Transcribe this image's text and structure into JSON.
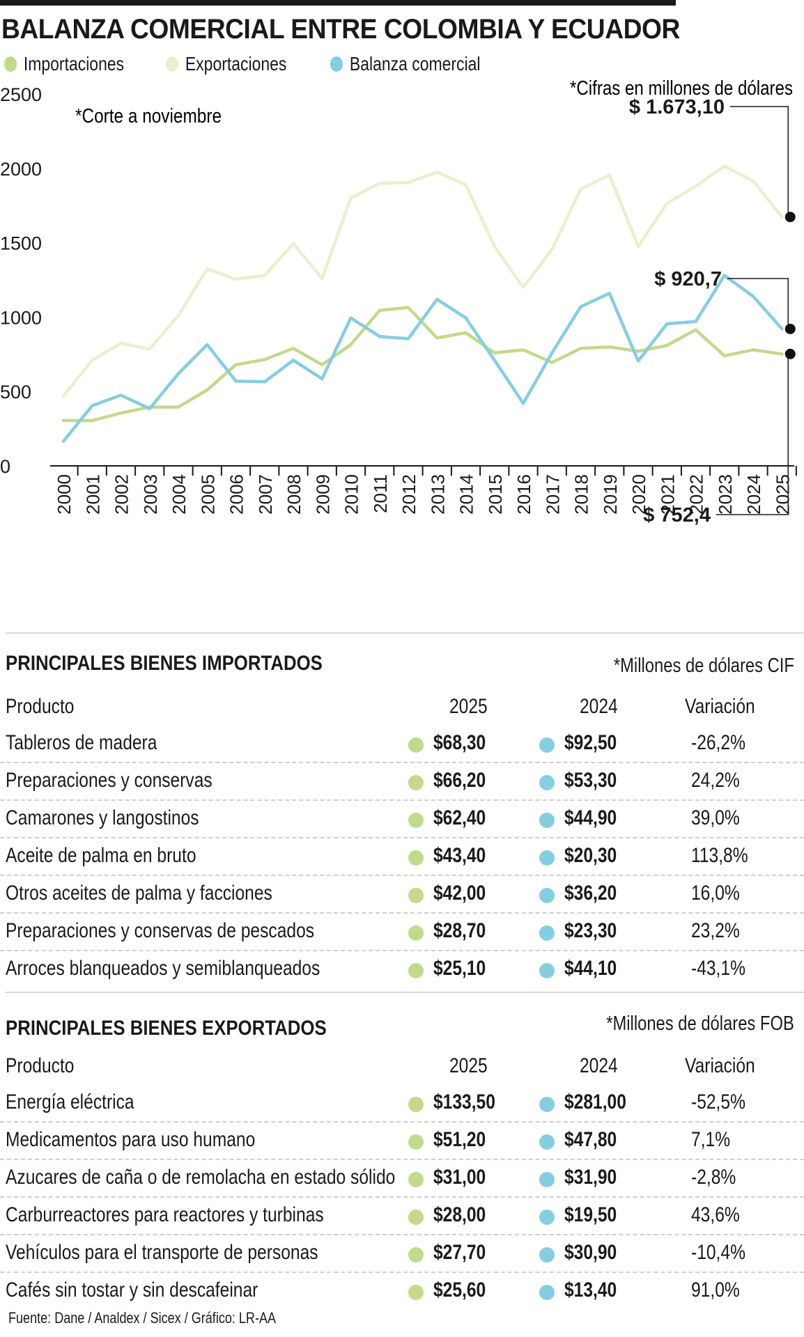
{
  "title": "BALANZA COMERCIAL ENTRE COLOMBIA Y ECUADOR",
  "colors": {
    "importaciones": "#c3d98b",
    "exportaciones": "#e8f0cf",
    "balanza": "#86cde0",
    "text": "#1a1a1a"
  },
  "legend": [
    {
      "label": "Importaciones",
      "color": "#c3d98b"
    },
    {
      "label": "Exportaciones",
      "color": "#e8f0cf"
    },
    {
      "label": "Balanza comercial",
      "color": "#86cde0"
    }
  ],
  "chart_data": {
    "type": "line",
    "title": "BALANZA COMERCIAL ENTRE COLOMBIA Y ECUADOR",
    "x": [
      "2000",
      "2001",
      "2002",
      "2003",
      "2004",
      "2005",
      "2006",
      "2007",
      "2008",
      "2009",
      "2010",
      "2011",
      "2012",
      "2013",
      "2014",
      "2015",
      "2016",
      "2017",
      "2018",
      "2019",
      "2020",
      "2021",
      "2022",
      "2023",
      "2024",
      "2025"
    ],
    "yticks": [
      0,
      500,
      1000,
      1500,
      2000,
      2500
    ],
    "ylim": [
      0,
      2500
    ],
    "grid": false,
    "legend_position": "top-left",
    "series": [
      {
        "name": "Exportaciones",
        "color": "#e8f0cf",
        "values": [
          470,
          710,
          825,
          785,
          1010,
          1325,
          1255,
          1280,
          1495,
          1260,
          1800,
          1900,
          1905,
          1975,
          1890,
          1475,
          1200,
          1455,
          1860,
          1955,
          1475,
          1765,
          1880,
          2015,
          1915,
          1673.1
        ]
      },
      {
        "name": "Importaciones",
        "color": "#c3d98b",
        "values": [
          305,
          305,
          355,
          395,
          395,
          510,
          680,
          715,
          790,
          680,
          815,
          1045,
          1065,
          860,
          895,
          760,
          780,
          695,
          790,
          800,
          770,
          810,
          915,
          740,
          780,
          752.4
        ]
      },
      {
        "name": "Balanza comercial",
        "color": "#86cde0",
        "values": [
          165,
          405,
          475,
          385,
          620,
          815,
          570,
          565,
          710,
          585,
          995,
          870,
          855,
          1120,
          995,
          710,
          420,
          760,
          1070,
          1160,
          705,
          955,
          970,
          1280,
          1140,
          920.7
        ]
      }
    ],
    "annotations": {
      "note_units": "*Cifras en millones de dólares",
      "note_cutoff": "*Corte a noviembre",
      "callout_exportaciones": "$ 1.673,10",
      "callout_balanza": "$ 920,7",
      "callout_importaciones": "$ 752,4"
    }
  },
  "importados": {
    "title": "PRINCIPALES BIENES IMPORTADOS",
    "unit_note": "*Millones de dólares CIF",
    "headers": {
      "product": "Producto",
      "y2025": "2025",
      "y2024": "2024",
      "variation": "Variación"
    },
    "rows": [
      {
        "product": "Tableros de madera",
        "v2025": "$68,30",
        "v2024": "$92,50",
        "variation": "-26,2%"
      },
      {
        "product": "Preparaciones y conservas",
        "v2025": "$66,20",
        "v2024": "$53,30",
        "variation": "24,2%"
      },
      {
        "product": "Camarones y langostinos",
        "v2025": "$62,40",
        "v2024": "$44,90",
        "variation": "39,0%"
      },
      {
        "product": "Aceite de palma en bruto",
        "v2025": "$43,40",
        "v2024": "$20,30",
        "variation": "113,8%"
      },
      {
        "product": "Otros aceites de palma y facciones",
        "v2025": "$42,00",
        "v2024": "$36,20",
        "variation": "16,0%"
      },
      {
        "product": "Preparaciones y conservas de pescados",
        "v2025": "$28,70",
        "v2024": "$23,30",
        "variation": "23,2%"
      },
      {
        "product": "Arroces blanqueados y semiblanqueados",
        "v2025": "$25,10",
        "v2024": "$44,10",
        "variation": "-43,1%"
      }
    ]
  },
  "exportados": {
    "title": "PRINCIPALES BIENES EXPORTADOS",
    "unit_note": "*Millones de dólares FOB",
    "headers": {
      "product": "Producto",
      "y2025": "2025",
      "y2024": "2024",
      "variation": "Variación"
    },
    "rows": [
      {
        "product": "Energía eléctrica",
        "v2025": "$133,50",
        "v2024": "$281,00",
        "variation": "-52,5%"
      },
      {
        "product": "Medicamentos para uso humano",
        "v2025": "$51,20",
        "v2024": "$47,80",
        "variation": "7,1%"
      },
      {
        "product": "Azucares de caña o de remolacha en estado sólido",
        "v2025": "$31,00",
        "v2024": "$31,90",
        "variation": "-2,8%"
      },
      {
        "product": "Carburreactores para reactores y turbinas",
        "v2025": "$28,00",
        "v2024": "$19,50",
        "variation": "43,6%"
      },
      {
        "product": "Vehículos para el transporte de personas",
        "v2025": "$27,70",
        "v2024": "$30,90",
        "variation": "-10,4%"
      },
      {
        "product": "Cafés sin tostar y sin descafeinar",
        "v2025": "$25,60",
        "v2024": "$13,40",
        "variation": "91,0%"
      }
    ]
  },
  "source": "Fuente: Dane / Analdex / Sicex / Gráfico: LR-AA"
}
